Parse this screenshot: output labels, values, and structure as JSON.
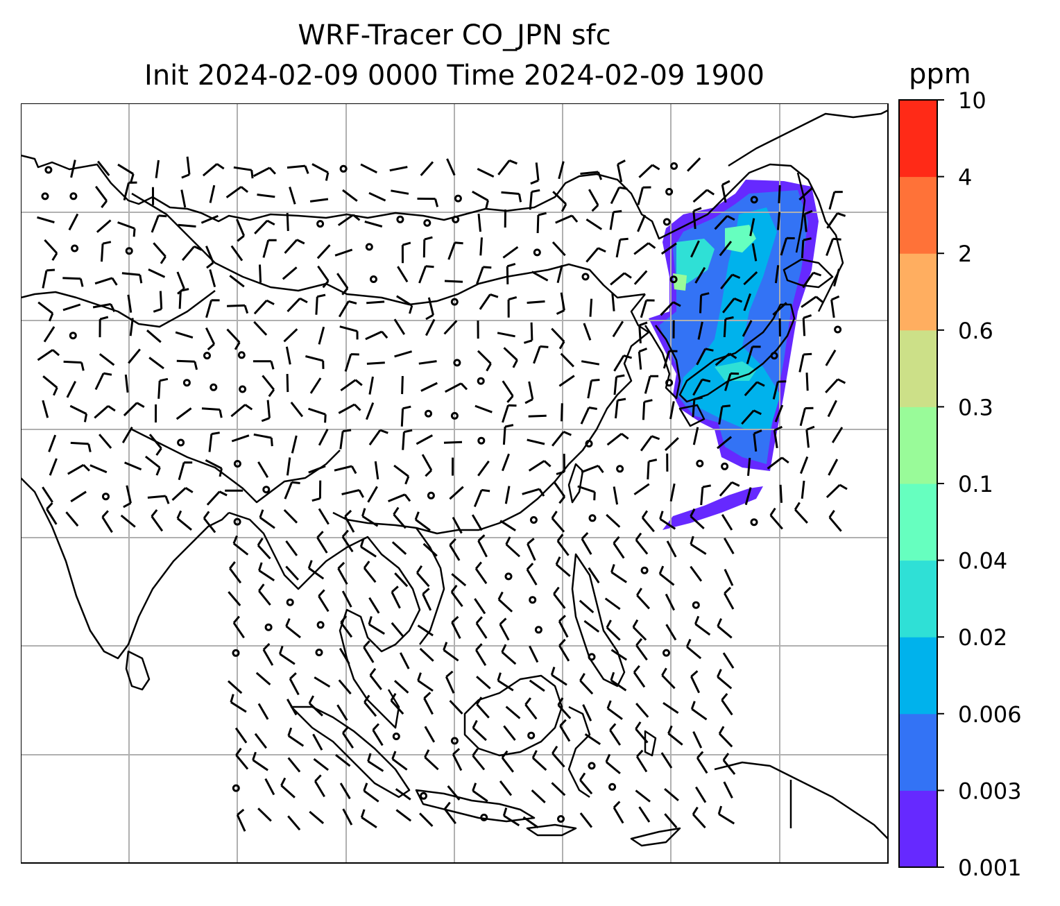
{
  "title": {
    "line1": "WRF-Tracer CO_JPN sfc",
    "line2": "Init 2024-02-09 0000 Time 2024-02-09 1900"
  },
  "colorbar": {
    "unit": "ppm",
    "levels": [
      "0.001",
      "0.003",
      "0.006",
      "0.02",
      "0.04",
      "0.1",
      "0.3",
      "0.6",
      "2",
      "4",
      "10"
    ],
    "colors": [
      "#6629ff",
      "#3373f5",
      "#00b2ec",
      "#2fe0d6",
      "#66ffbf",
      "#99fb99",
      "#cce088",
      "#ffae60",
      "#ff7238",
      "#ff2a17"
    ]
  },
  "map": {
    "gridlines": true,
    "coastlines": true,
    "wind_barbs": true,
    "plume_region": "Japan and surrounding seas"
  }
}
